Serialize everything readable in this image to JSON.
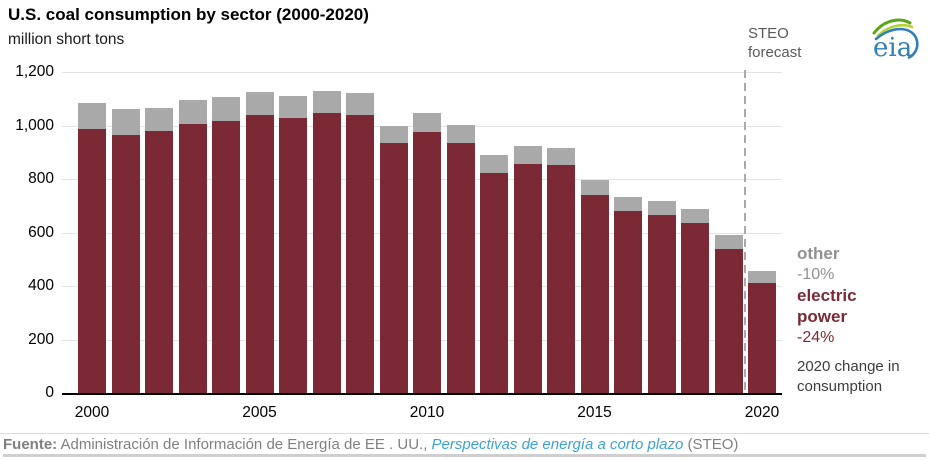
{
  "header": {
    "title": "U.S. coal consumption by sector (2000-2020)",
    "subtitle": "million short tons"
  },
  "logo": {
    "text": "eia"
  },
  "colors": {
    "electric_power": "#7b2a35",
    "other": "#a9a9a9",
    "gridline": "#e4e4e4",
    "axis": "#000000",
    "forecast_divider": "#a9a9a9",
    "link_blue": "#3ba2d9"
  },
  "chart_data": {
    "type": "bar",
    "stacked": true,
    "title": "U.S. coal consumption by sector (2000-2020)",
    "ylabel": "million short tons",
    "xlabel": "",
    "ylim": [
      0,
      1200
    ],
    "grid": "horizontal",
    "legend_position": "right",
    "categories": [
      2000,
      2001,
      2002,
      2003,
      2004,
      2005,
      2006,
      2007,
      2008,
      2009,
      2010,
      2011,
      2012,
      2013,
      2014,
      2015,
      2016,
      2017,
      2018,
      2019,
      2020
    ],
    "series": [
      {
        "name": "electric power",
        "key": "electric",
        "color": "#7b2a35",
        "values": [
          986,
          964,
          978,
          1005,
          1016,
          1039,
          1027,
          1045,
          1041,
          934,
          975,
          933,
          824,
          858,
          852,
          739,
          679,
          665,
          637,
          539,
          410
        ]
      },
      {
        "name": "other",
        "key": "other",
        "color": "#a9a9a9",
        "values": [
          98,
          96,
          88,
          90,
          91,
          87,
          85,
          83,
          80,
          63,
          73,
          70,
          65,
          66,
          65,
          59,
          52,
          52,
          51,
          51,
          46
        ]
      }
    ],
    "ytick_values": [
      0,
      200,
      400,
      600,
      800,
      1000,
      1200
    ],
    "ytick_labels": [
      "0",
      "200",
      "400",
      "600",
      "800",
      "1,000",
      "1,200"
    ],
    "xticks": [
      {
        "index": 0,
        "label": "2000"
      },
      {
        "index": 5,
        "label": "2005"
      },
      {
        "index": 10,
        "label": "2010"
      },
      {
        "index": 15,
        "label": "2015"
      },
      {
        "index": 20,
        "label": "2020"
      }
    ],
    "forecast": {
      "label": "STEO forecast",
      "divider_between": [
        2019,
        2020
      ]
    },
    "legend": {
      "entries": [
        {
          "label": "other",
          "change": "-10%",
          "color": "#a9a9a9"
        },
        {
          "label": "electric power",
          "change": "-24%",
          "color": "#7b2a35"
        }
      ],
      "caption": "2020 change in consumption"
    }
  },
  "footer": {
    "source_label": "Fuente:",
    "source_text": " Administración de Información de Energía de EE . UU., ",
    "source_link": "Perspectivas de energía a corto plazo",
    "source_suffix": " (STEO)"
  }
}
